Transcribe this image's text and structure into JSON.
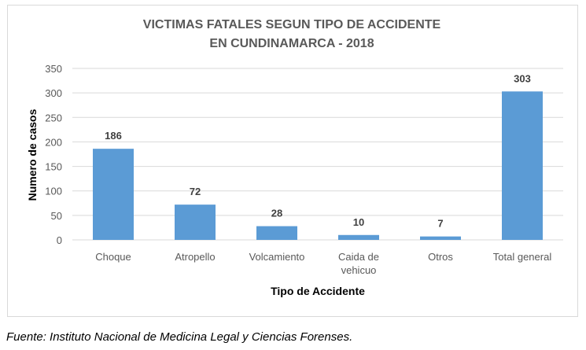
{
  "chart_data": {
    "type": "bar",
    "title_lines": [
      "VICTIMAS FATALES SEGUN TIPO DE ACCIDENTE",
      "EN CUNDINAMARCA - 2018"
    ],
    "xlabel": "Tipo de Accidente",
    "ylabel": "Numero de casos",
    "categories": [
      [
        "Choque"
      ],
      [
        "Atropello"
      ],
      [
        "Volcamiento"
      ],
      [
        "Caida de",
        "vehicuo"
      ],
      [
        "Otros"
      ],
      [
        "Total general"
      ]
    ],
    "values": [
      186,
      72,
      28,
      10,
      7,
      303
    ],
    "ylim": [
      0,
      350
    ],
    "yticks": [
      0,
      50,
      100,
      150,
      200,
      250,
      300,
      350
    ],
    "grid": true,
    "bar_color": "#5B9BD5",
    "grid_color": "#d9d9d9"
  },
  "source": "Fuente: Instituto Nacional de Medicina Legal y Ciencias Forenses."
}
